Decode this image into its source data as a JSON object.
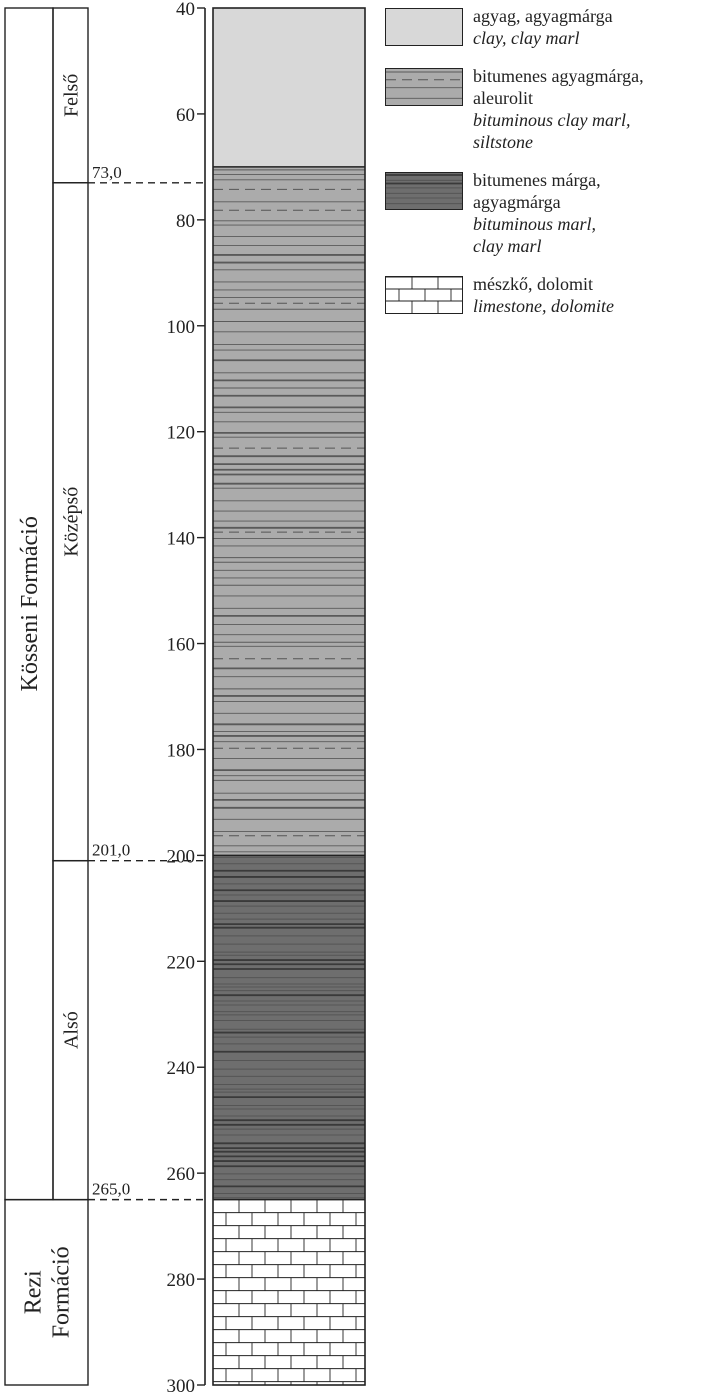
{
  "depth_axis": {
    "min": 40,
    "max": 300,
    "tick_step": 20,
    "tick_labels": [
      "40",
      "60",
      "80",
      "100",
      "120",
      "140",
      "160",
      "180",
      "200",
      "220",
      "240",
      "260",
      "280",
      "300"
    ]
  },
  "formations": [
    {
      "label": "Kösseni Formáció",
      "top": 40,
      "bottom": 265
    },
    {
      "label_lines": [
        "Rezi",
        "Formáció"
      ],
      "top": 265,
      "bottom": 300
    }
  ],
  "members": [
    {
      "label": "Felső",
      "top": 40,
      "bottom": 73
    },
    {
      "label": "Középső",
      "top": 73,
      "bottom": 201
    },
    {
      "label": "Alsó",
      "top": 201,
      "bottom": 265
    }
  ],
  "boundaries": [
    {
      "depth": 73,
      "label": "73,0"
    },
    {
      "depth": 201,
      "label": "201,0"
    },
    {
      "depth": 265,
      "label": "265,0"
    }
  ],
  "lithology_column": [
    {
      "top": 40,
      "bottom": 70,
      "pattern": "clay"
    },
    {
      "top": 70,
      "bottom": 200,
      "pattern": "bituminous_clay_marl"
    },
    {
      "top": 200,
      "bottom": 265,
      "pattern": "bituminous_marl"
    },
    {
      "top": 265,
      "bottom": 300,
      "pattern": "limestone"
    }
  ],
  "legend": [
    {
      "pattern": "clay",
      "hu": [
        "agyag, agyagmárga"
      ],
      "en": [
        "clay, clay marl"
      ]
    },
    {
      "pattern": "bituminous_clay_marl",
      "hu": [
        "bitumenes agyagmárga,",
        "aleurolit"
      ],
      "en": [
        "bituminous clay marl,",
        "siltstone"
      ]
    },
    {
      "pattern": "bituminous_marl",
      "hu": [
        "bitumenes márga,",
        "agyagmárga"
      ],
      "en": [
        "bituminous marl,",
        "clay marl"
      ]
    },
    {
      "pattern": "limestone",
      "hu": [
        "mészkő, dolomit"
      ],
      "en": [
        "limestone, dolomite"
      ]
    }
  ],
  "colors": {
    "clay": "#d8d8d8",
    "bituminous_clay_marl": "#ababab",
    "bituminous_marl": "#6e6e6e",
    "limestone": "#ffffff",
    "ink": "#222222"
  }
}
